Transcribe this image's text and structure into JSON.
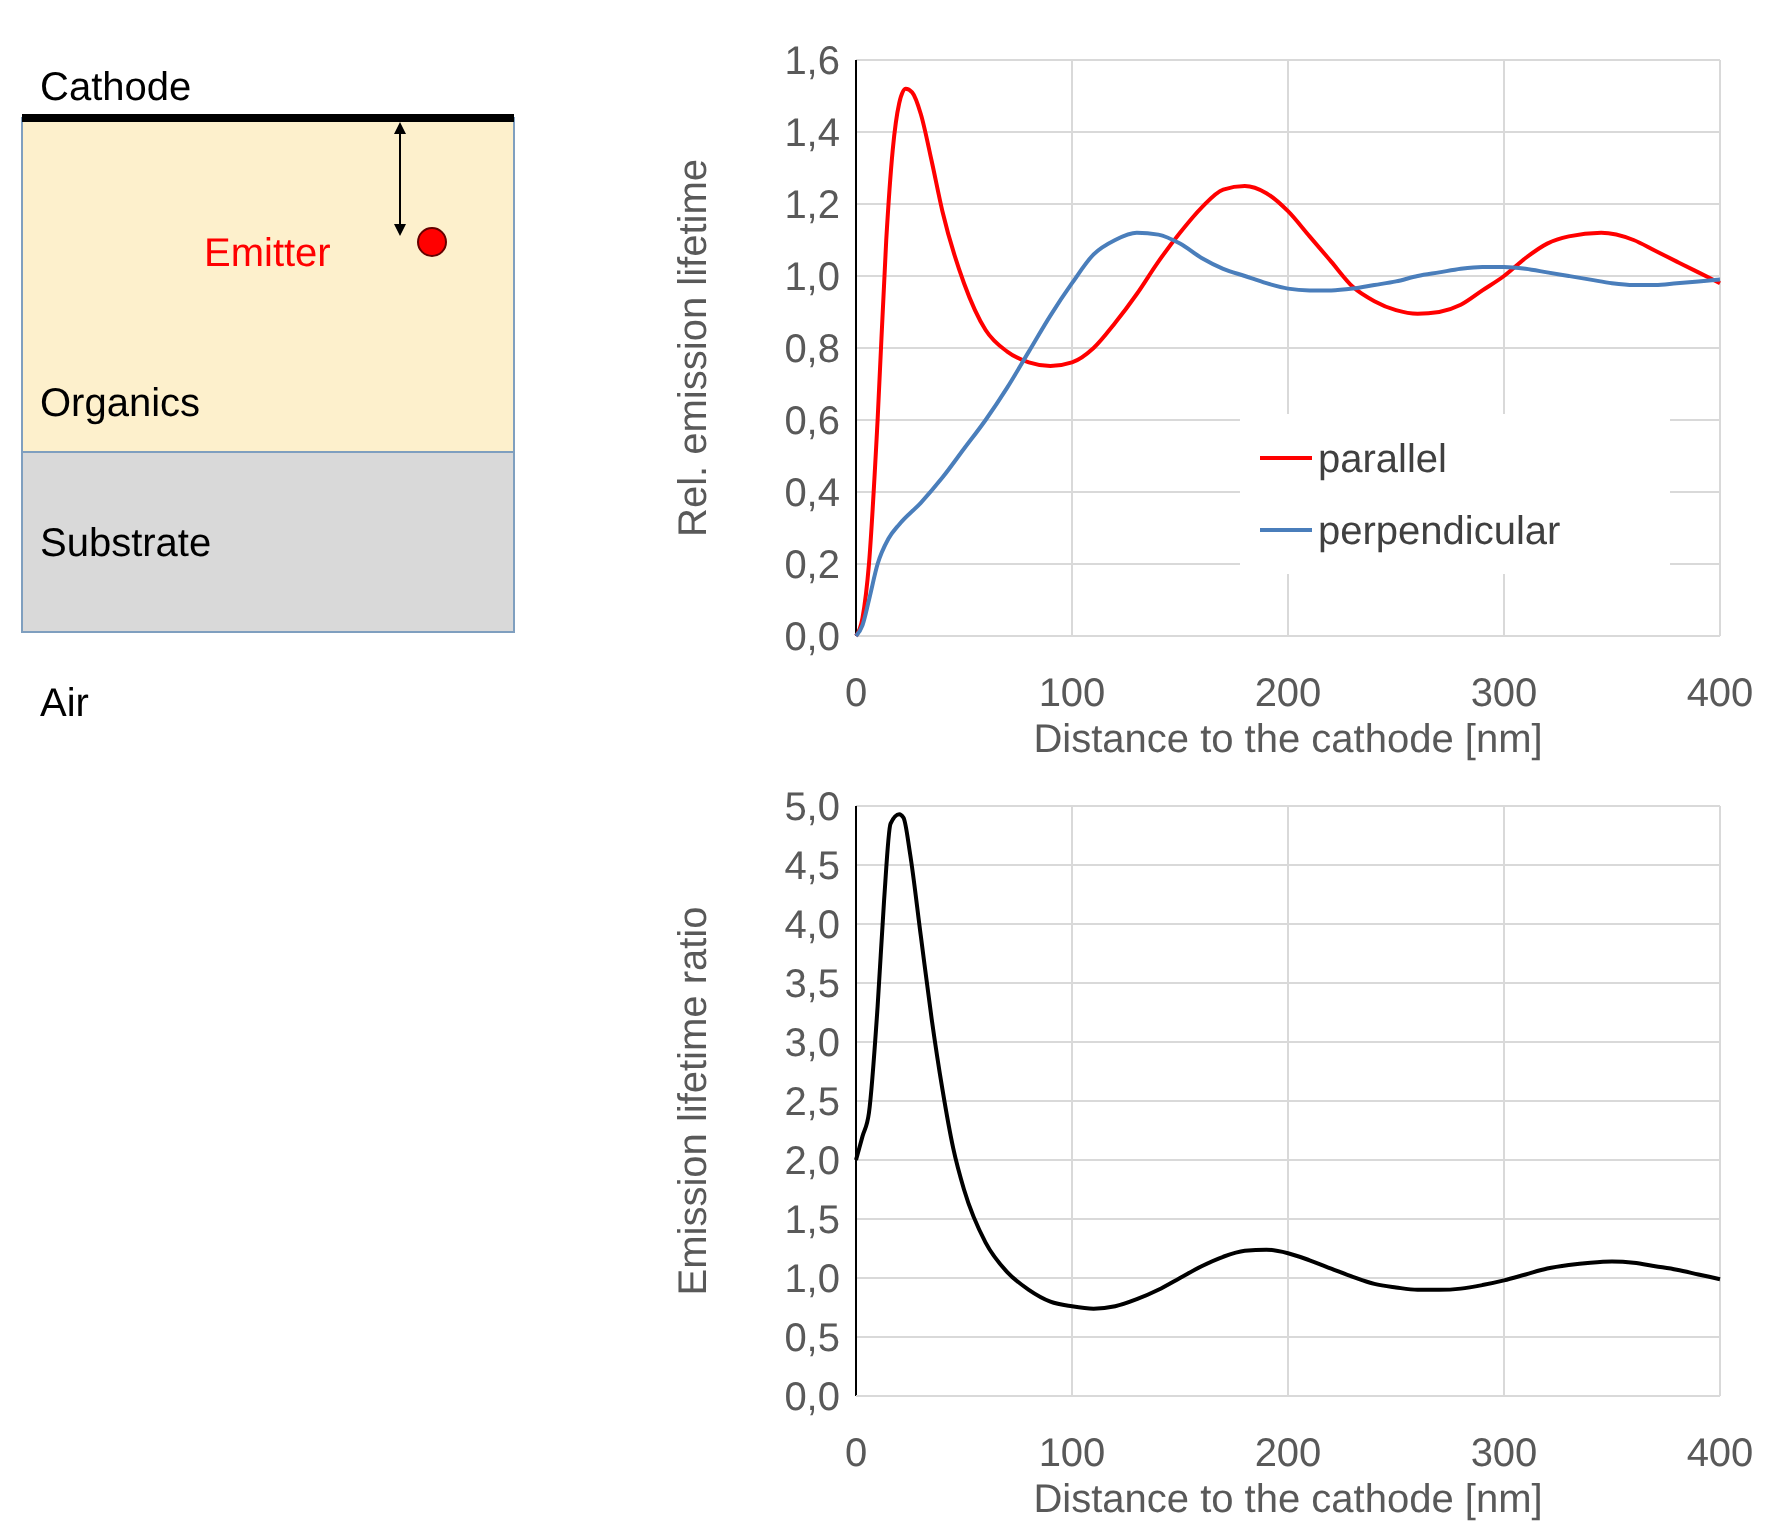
{
  "chart_data": [
    {
      "type": "other",
      "annotations": [
        "Cathode",
        "Emitter",
        "Organics",
        "Substrate",
        "Air"
      ]
    },
    {
      "type": "line",
      "xlabel": "Distance to the cathode [nm]",
      "ylabel": "Rel. emission lifetime",
      "xlim": [
        0,
        400
      ],
      "xticks": [
        0,
        100,
        200,
        300,
        400
      ],
      "ylim": [
        0,
        1.6
      ],
      "yticks": [
        {
          "value": 0,
          "label": "0,0"
        },
        {
          "value": 0.2,
          "label": "0,2"
        },
        {
          "value": 0.4,
          "label": "0,4"
        },
        {
          "value": 0.6,
          "label": "0,6"
        },
        {
          "value": 0.8,
          "label": "0,8"
        },
        {
          "value": 1,
          "label": "1,0"
        },
        {
          "value": 1.2,
          "label": "1,2"
        },
        {
          "value": 1.4,
          "label": "1,4"
        },
        {
          "value": 1.6,
          "label": "1,6"
        }
      ],
      "grid": true,
      "legend": "bottom right",
      "line_style": "solid",
      "series": [
        {
          "name": "parallel",
          "color": "#ff0000",
          "x": [
            0,
            3,
            6,
            10,
            14,
            17,
            20,
            23,
            26,
            30,
            35,
            40,
            50,
            60,
            70,
            80,
            90,
            100,
            110,
            120,
            130,
            140,
            150,
            160,
            170,
            180,
            190,
            200,
            210,
            220,
            230,
            240,
            250,
            260,
            270,
            280,
            290,
            300,
            310,
            320,
            330,
            345,
            360,
            370,
            380,
            390,
            400
          ],
          "values": [
            0.0,
            0.05,
            0.2,
            0.6,
            1.1,
            1.35,
            1.48,
            1.52,
            1.51,
            1.45,
            1.32,
            1.18,
            0.98,
            0.85,
            0.79,
            0.76,
            0.75,
            0.76,
            0.8,
            0.87,
            0.95,
            1.04,
            1.12,
            1.19,
            1.24,
            1.25,
            1.23,
            1.18,
            1.11,
            1.04,
            0.97,
            0.93,
            0.905,
            0.895,
            0.9,
            0.92,
            0.96,
            1.0,
            1.05,
            1.09,
            1.11,
            1.12,
            1.1,
            1.07,
            1.04,
            1.01,
            0.98
          ]
        },
        {
          "name": "perpendicular",
          "color": "#4a7ebb",
          "x": [
            0,
            3,
            6,
            10,
            15,
            20,
            30,
            40,
            50,
            60,
            70,
            80,
            90,
            100,
            110,
            120,
            130,
            140,
            150,
            160,
            170,
            180,
            190,
            200,
            210,
            220,
            230,
            240,
            250,
            260,
            270,
            280,
            290,
            300,
            310,
            320,
            330,
            340,
            350,
            360,
            370,
            380,
            390,
            400
          ],
          "values": [
            0.0,
            0.03,
            0.1,
            0.2,
            0.27,
            0.31,
            0.37,
            0.44,
            0.52,
            0.6,
            0.69,
            0.79,
            0.89,
            0.98,
            1.06,
            1.1,
            1.12,
            1.115,
            1.09,
            1.05,
            1.02,
            1.0,
            0.98,
            0.965,
            0.96,
            0.96,
            0.965,
            0.975,
            0.985,
            1.0,
            1.01,
            1.02,
            1.025,
            1.025,
            1.02,
            1.01,
            1.0,
            0.99,
            0.98,
            0.975,
            0.975,
            0.98,
            0.985,
            0.99
          ]
        }
      ]
    },
    {
      "type": "line",
      "xlabel": "Distance to the cathode [nm]",
      "ylabel": "Emission lifetime ratio",
      "xlim": [
        0,
        400
      ],
      "xticks": [
        0,
        100,
        200,
        300,
        400
      ],
      "ylim": [
        0,
        5
      ],
      "yticks": [
        {
          "value": 0,
          "label": "0,0"
        },
        {
          "value": 0.5,
          "label": "0,5"
        },
        {
          "value": 1,
          "label": "1,0"
        },
        {
          "value": 1.5,
          "label": "1,5"
        },
        {
          "value": 2,
          "label": "2,0"
        },
        {
          "value": 2.5,
          "label": "2,5"
        },
        {
          "value": 3,
          "label": "3,0"
        },
        {
          "value": 3.5,
          "label": "3,5"
        },
        {
          "value": 4,
          "label": "4,0"
        },
        {
          "value": 4.5,
          "label": "4,5"
        },
        {
          "value": 5,
          "label": "5,0"
        }
      ],
      "grid": true,
      "line_style": "solid",
      "series": [
        {
          "color": "#000000",
          "x": [
            0,
            3,
            6,
            10,
            13,
            16,
            20,
            22,
            25,
            30,
            35,
            40,
            45,
            50,
            60,
            70,
            80,
            90,
            100,
            110,
            120,
            130,
            140,
            150,
            160,
            170,
            180,
            190,
            200,
            210,
            220,
            230,
            240,
            250,
            260,
            270,
            280,
            290,
            300,
            310,
            320,
            330,
            340,
            350,
            360,
            370,
            380,
            390,
            400
          ],
          "values": [
            2.0,
            2.2,
            2.4,
            3.3,
            4.2,
            4.85,
            4.93,
            4.9,
            4.6,
            3.9,
            3.2,
            2.6,
            2.1,
            1.75,
            1.3,
            1.05,
            0.9,
            0.8,
            0.76,
            0.74,
            0.76,
            0.82,
            0.9,
            1.0,
            1.1,
            1.18,
            1.23,
            1.24,
            1.21,
            1.15,
            1.08,
            1.01,
            0.95,
            0.92,
            0.9,
            0.9,
            0.91,
            0.94,
            0.98,
            1.03,
            1.08,
            1.11,
            1.13,
            1.14,
            1.13,
            1.1,
            1.07,
            1.03,
            0.99
          ]
        }
      ]
    }
  ]
}
